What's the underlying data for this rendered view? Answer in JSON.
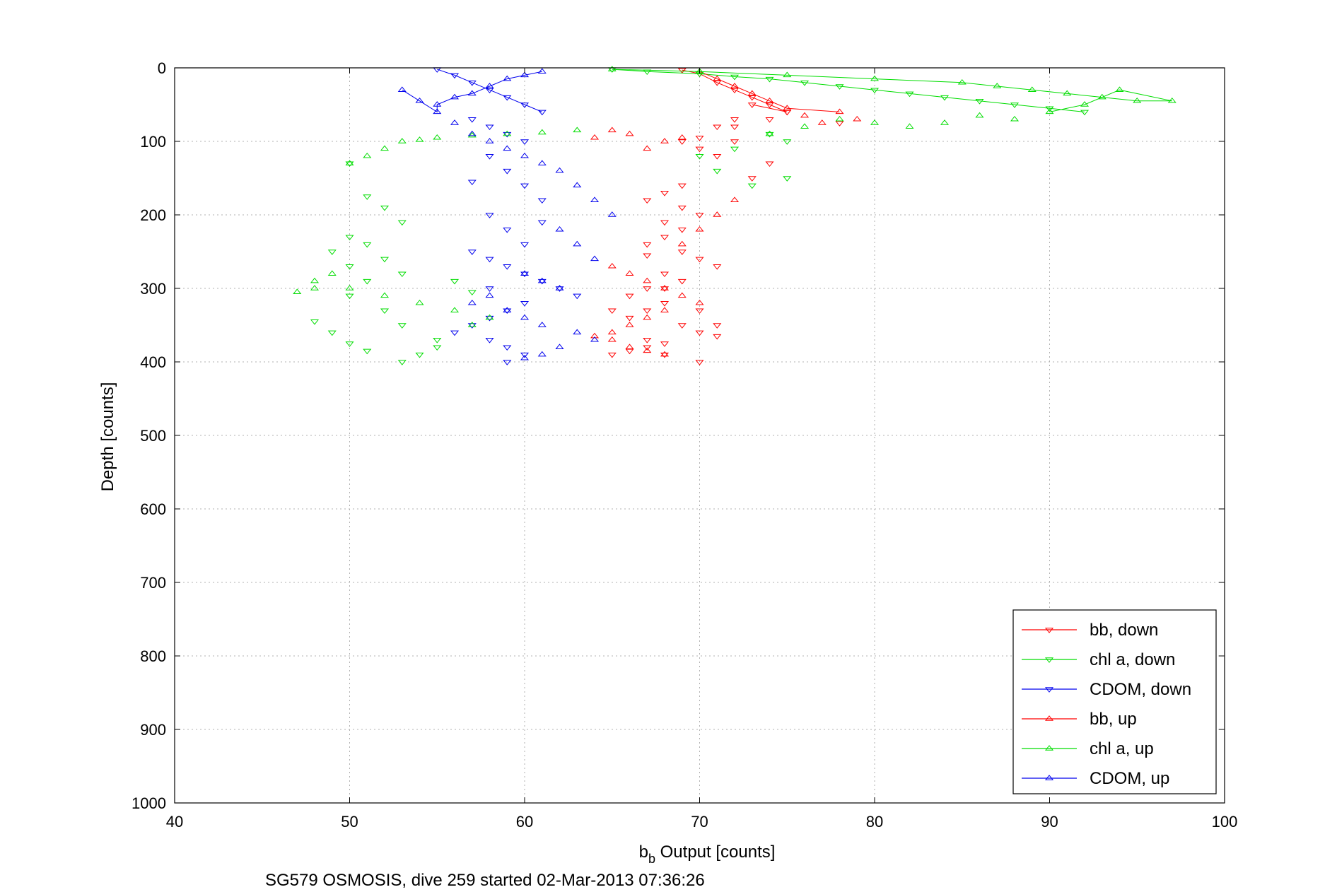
{
  "chart_data": {
    "type": "scatter",
    "xlabel_main": "b",
    "xlabel_sub": "b",
    "xlabel_rest": " Output [counts]",
    "ylabel": "Depth [counts]",
    "caption": "SG579 OSMOSIS, dive 259 started 02-Mar-2013 07:36:26",
    "xlim": [
      40,
      100
    ],
    "ylim": [
      0,
      1000
    ],
    "y_reversed": true,
    "xticks": [
      "40",
      "50",
      "60",
      "70",
      "80",
      "90",
      "100"
    ],
    "yticks": [
      "0",
      "100",
      "200",
      "300",
      "400",
      "500",
      "600",
      "700",
      "800",
      "900",
      "1000"
    ],
    "grid": true,
    "legend_placement": "bottom-right",
    "series": [
      {
        "name": "bb, down",
        "color": "#ff0000",
        "marker": "triangle-down",
        "x": [
          69,
          70,
          71,
          72,
          73,
          74,
          75,
          72,
          71,
          70,
          69,
          70,
          71,
          72,
          74,
          73,
          69,
          68,
          67,
          69,
          70,
          68,
          69,
          68,
          67,
          69,
          70,
          71,
          68,
          69,
          67,
          66,
          68,
          67,
          66,
          69,
          70,
          71,
          67,
          68,
          67,
          66,
          65,
          71,
          70,
          68,
          67,
          65,
          68,
          70,
          72,
          73,
          74,
          75,
          78
        ],
        "y": [
          3,
          8,
          20,
          30,
          40,
          50,
          60,
          70,
          80,
          95,
          100,
          110,
          120,
          100,
          130,
          150,
          160,
          170,
          180,
          190,
          200,
          210,
          220,
          230,
          240,
          250,
          260,
          270,
          280,
          290,
          300,
          310,
          320,
          330,
          340,
          350,
          360,
          365,
          370,
          375,
          380,
          385,
          390,
          350,
          330,
          300,
          255,
          330,
          390,
          400,
          80,
          50,
          70,
          60,
          75
        ]
      },
      {
        "name": "chl a, down",
        "color": "#00dd00",
        "marker": "triangle-down",
        "x": [
          65,
          67,
          70,
          72,
          74,
          76,
          78,
          80,
          82,
          84,
          86,
          88,
          90,
          92,
          74,
          75,
          72,
          70,
          71,
          73,
          75,
          50,
          51,
          52,
          53,
          50,
          49,
          50,
          51,
          50,
          52,
          53,
          55,
          56,
          57,
          55,
          54,
          53,
          51,
          50,
          49,
          48,
          53,
          52,
          51
        ],
        "y": [
          2,
          5,
          8,
          12,
          15,
          20,
          25,
          30,
          35,
          40,
          45,
          50,
          55,
          60,
          90,
          100,
          110,
          120,
          140,
          160,
          150,
          130,
          175,
          190,
          210,
          230,
          250,
          270,
          290,
          310,
          330,
          350,
          370,
          290,
          305,
          380,
          390,
          400,
          385,
          375,
          360,
          345,
          280,
          260,
          240
        ]
      },
      {
        "name": "CDOM, down",
        "color": "#0000ee",
        "marker": "triangle-down",
        "x": [
          55,
          56,
          57,
          58,
          59,
          60,
          61,
          57,
          58,
          59,
          60,
          58,
          57,
          59,
          60,
          61,
          58,
          59,
          60,
          61,
          57,
          58,
          59,
          60,
          61,
          62,
          63,
          60,
          59,
          58,
          57,
          56,
          58,
          59,
          60,
          59,
          58
        ],
        "y": [
          2,
          10,
          20,
          30,
          40,
          50,
          60,
          70,
          80,
          90,
          100,
          120,
          155,
          140,
          160,
          180,
          200,
          220,
          240,
          210,
          250,
          260,
          270,
          280,
          290,
          300,
          310,
          320,
          330,
          340,
          350,
          360,
          370,
          380,
          390,
          400,
          300
        ]
      },
      {
        "name": "bb, up",
        "color": "#ff0000",
        "marker": "triangle-up",
        "x": [
          70,
          71,
          72,
          73,
          74,
          75,
          76,
          77,
          78,
          79,
          69,
          68,
          67,
          66,
          65,
          64,
          65,
          66,
          67,
          68,
          69,
          70,
          68,
          67,
          66,
          65,
          64,
          65,
          66,
          67,
          68,
          69,
          70,
          71,
          72
        ],
        "y": [
          5,
          15,
          25,
          35,
          45,
          55,
          65,
          75,
          60,
          70,
          95,
          100,
          110,
          90,
          85,
          95,
          270,
          280,
          290,
          300,
          310,
          320,
          330,
          340,
          350,
          360,
          365,
          370,
          380,
          385,
          390,
          240,
          220,
          200,
          180
        ]
      },
      {
        "name": "chl a, up",
        "color": "#00dd00",
        "marker": "triangle-up",
        "x": [
          65,
          70,
          75,
          80,
          85,
          87,
          89,
          91,
          93,
          95,
          97,
          94,
          92,
          90,
          88,
          86,
          84,
          82,
          80,
          78,
          76,
          74,
          63,
          61,
          59,
          57,
          55,
          54,
          53,
          52,
          51,
          50,
          49,
          48,
          47,
          48,
          50,
          52,
          54,
          56,
          58,
          57
        ],
        "y": [
          2,
          5,
          10,
          15,
          20,
          25,
          30,
          35,
          40,
          45,
          45,
          30,
          50,
          60,
          70,
          65,
          75,
          80,
          75,
          70,
          80,
          90,
          85,
          88,
          90,
          92,
          95,
          98,
          100,
          110,
          120,
          130,
          280,
          300,
          305,
          290,
          300,
          310,
          320,
          330,
          340,
          350
        ]
      },
      {
        "name": "CDOM, up",
        "color": "#0000ee",
        "marker": "triangle-up",
        "x": [
          53,
          54,
          55,
          56,
          57,
          58,
          59,
          60,
          61,
          55,
          56,
          57,
          58,
          59,
          60,
          61,
          62,
          63,
          64,
          65,
          62,
          63,
          64,
          60,
          61,
          62,
          58,
          57,
          59,
          60,
          61,
          63,
          64,
          62,
          61,
          60
        ],
        "y": [
          30,
          45,
          60,
          75,
          90,
          100,
          110,
          120,
          130,
          50,
          40,
          35,
          25,
          15,
          10,
          5,
          140,
          160,
          180,
          200,
          220,
          240,
          260,
          280,
          290,
          300,
          310,
          320,
          330,
          340,
          350,
          360,
          370,
          380,
          390,
          395
        ]
      }
    ]
  }
}
